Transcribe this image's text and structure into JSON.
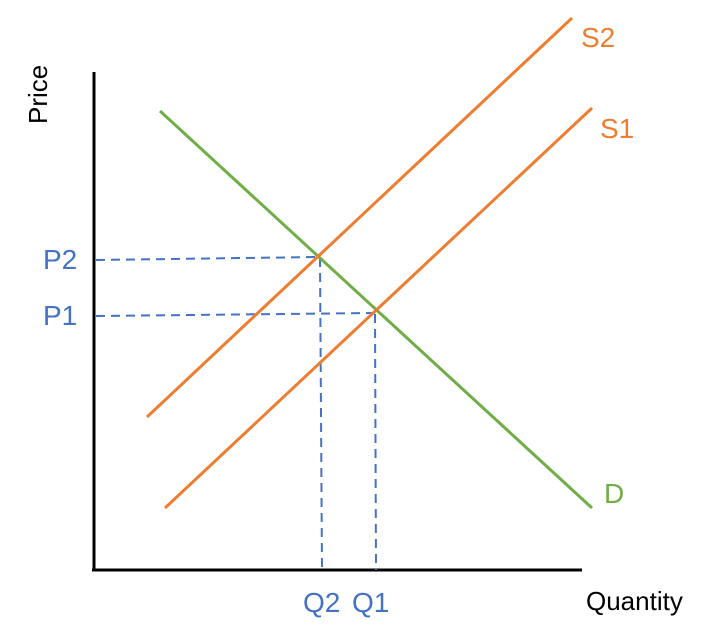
{
  "axes": {
    "y_title": "Price",
    "x_title": "Quantity"
  },
  "curves": {
    "demand_label": "D",
    "supply1_label": "S1",
    "supply2_label": "S2"
  },
  "equilibrium": {
    "p1": "P1",
    "p2": "P2",
    "q1": "Q1",
    "q2": "Q2"
  },
  "colors": {
    "axis": "#000000",
    "demand": "#70ad47",
    "supply": "#ed7d31",
    "guides": "#4472c4"
  }
}
